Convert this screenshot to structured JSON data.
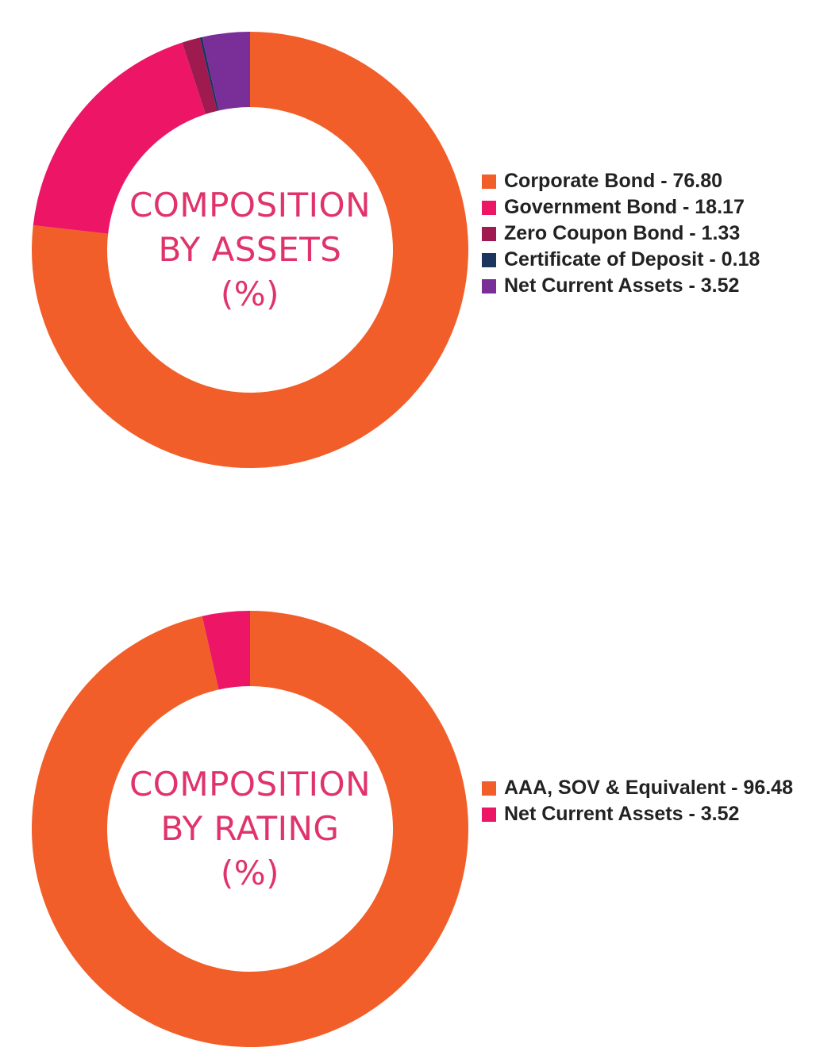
{
  "chart_data": [
    {
      "type": "pie",
      "title": [
        "COMPOSITION",
        "BY ASSETS",
        "(%)"
      ],
      "categories": [
        "Corporate Bond",
        "Government Bond",
        "Zero Coupon Bond",
        "Certificate of Deposit",
        "Net Current Assets"
      ],
      "values": [
        76.8,
        18.17,
        1.33,
        0.18,
        3.52
      ],
      "legend_labels": [
        "Corporate Bond - 76.80",
        "Government Bond - 18.17",
        "Zero Coupon Bond - 1.33",
        "Certificate of Deposit - 0.18",
        "Net Current Assets - 3.52"
      ],
      "colors": [
        "#f15e29",
        "#ec1566",
        "#9e1a4f",
        "#1c355e",
        "#7a2e98"
      ],
      "legend_position": "right"
    },
    {
      "type": "pie",
      "title": [
        "COMPOSITION",
        "BY RATING",
        "(%)"
      ],
      "categories": [
        "AAA, SOV & Equivalent",
        "Net Current Assets"
      ],
      "values": [
        96.48,
        3.52
      ],
      "legend_labels": [
        "AAA, SOV & Equivalent - 96.48",
        "Net Current Assets - 3.52"
      ],
      "colors": [
        "#f15e29",
        "#ec1566"
      ],
      "legend_position": "right"
    }
  ]
}
